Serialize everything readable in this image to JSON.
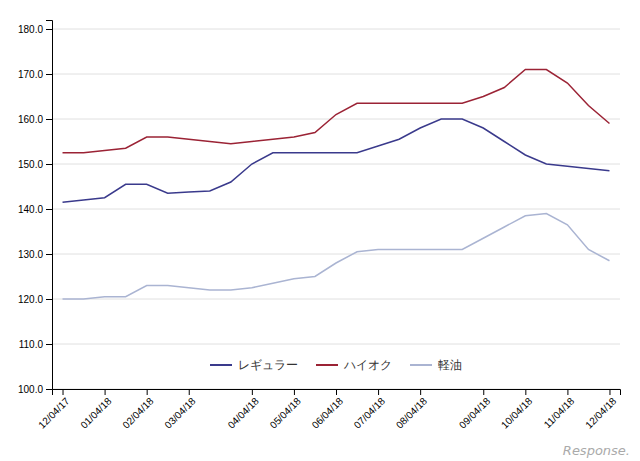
{
  "chart_data": {
    "type": "line",
    "categories": [
      "12/04/17",
      null,
      "01/04/18",
      null,
      "02/04/18",
      null,
      "03/04/18",
      null,
      null,
      "04/04/18",
      null,
      "05/04/18",
      null,
      "06/04/18",
      null,
      "07/04/18",
      null,
      "08/04/18",
      null,
      null,
      "09/04/18",
      null,
      "10/04/18",
      null,
      "11/04/18",
      null,
      "12/04/18"
    ],
    "series": [
      {
        "name": "レギュラー",
        "color": "#3a3a8c",
        "values": [
          141.5,
          142.0,
          142.5,
          145.5,
          145.5,
          143.5,
          143.8,
          144.0,
          146.0,
          150.0,
          152.5,
          152.5,
          152.5,
          152.5,
          152.5,
          154.0,
          155.5,
          158.0,
          160.0,
          160.0,
          158.0,
          155.0,
          152.0,
          150.0,
          149.5,
          149.0,
          148.5
        ]
      },
      {
        "name": "ハイオク",
        "color": "#9b2335",
        "values": [
          152.5,
          152.5,
          153.0,
          153.5,
          156.0,
          156.0,
          155.5,
          155.0,
          154.5,
          155.0,
          155.5,
          156.0,
          157.0,
          161.0,
          163.5,
          163.5,
          163.5,
          163.5,
          163.5,
          163.5,
          165.0,
          167.0,
          171.0,
          171.0,
          168.0,
          163.0,
          159.0
        ]
      },
      {
        "name": "軽油",
        "color": "#aab4d2",
        "values": [
          120.0,
          120.0,
          120.5,
          120.5,
          123.0,
          123.0,
          122.5,
          122.0,
          122.0,
          122.5,
          123.5,
          124.5,
          125.0,
          128.0,
          130.5,
          131.0,
          131.0,
          131.0,
          131.0,
          131.0,
          133.5,
          136.0,
          138.5,
          139.0,
          136.5,
          131.0,
          128.5
        ]
      }
    ],
    "ylim": [
      100.0,
      182.0
    ],
    "yticks": [
      {
        "value": 100.0,
        "label": "100.0"
      },
      {
        "value": 110.0,
        "label": "110.0"
      },
      {
        "value": 120.0,
        "label": "120.0"
      },
      {
        "value": 130.0,
        "label": "130.0"
      },
      {
        "value": 140.0,
        "label": "140.0"
      },
      {
        "value": 150.0,
        "label": "150.0"
      },
      {
        "value": 160.0,
        "label": "160.0"
      },
      {
        "value": 170.0,
        "label": "170.0"
      },
      {
        "value": 180.0,
        "label": "180.0"
      }
    ],
    "grid": true,
    "legend": "lower center",
    "annotations": [
      "Response."
    ]
  }
}
